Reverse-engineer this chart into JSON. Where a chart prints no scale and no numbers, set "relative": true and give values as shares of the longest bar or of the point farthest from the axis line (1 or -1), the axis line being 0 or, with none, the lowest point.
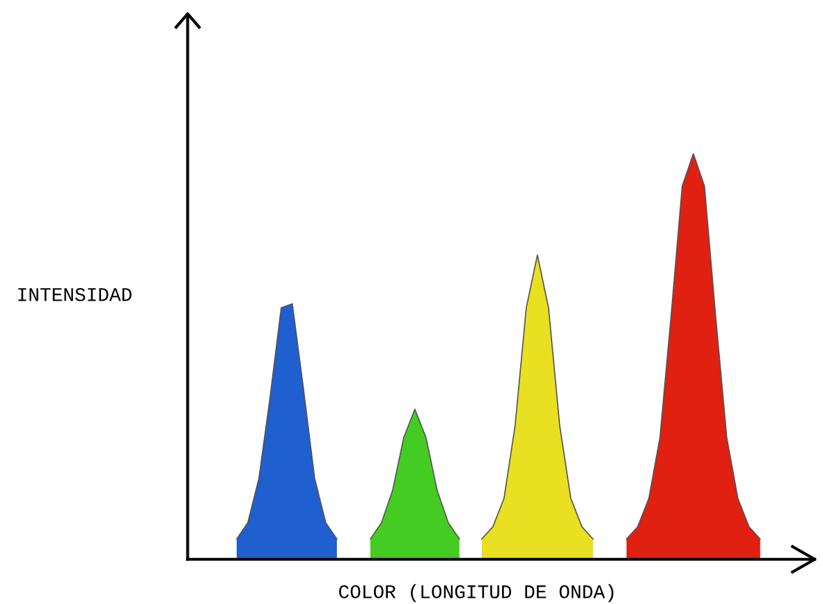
{
  "chart_data": {
    "type": "area",
    "relative": true,
    "xlabel": "COLOR (LONGITUD DE ONDA)",
    "ylabel": "INTENSIDAD",
    "grid": false,
    "legend": false,
    "categories": [
      null,
      null,
      null,
      null,
      null,
      null,
      null,
      null,
      null,
      null,
      null,
      null,
      null,
      null,
      null,
      null,
      null,
      null,
      null,
      null,
      null,
      null,
      null,
      null,
      null,
      null,
      null,
      null,
      null,
      null,
      null,
      null,
      null,
      null,
      null,
      null,
      null,
      null,
      null,
      null,
      null,
      null,
      null,
      null,
      null,
      null,
      null,
      null,
      null,
      null,
      null,
      null,
      null,
      null,
      null,
      null
    ],
    "series": [
      {
        "color": "#1f5fd0",
        "values": [
          null,
          null,
          null,
          null,
          0.05,
          0.09,
          0.2,
          0.4,
          0.62,
          0.63,
          0.42,
          0.2,
          0.09,
          0.05,
          null,
          null,
          null,
          null,
          null,
          null,
          null,
          null,
          null,
          null,
          null,
          null,
          null,
          null,
          null,
          null,
          null,
          null,
          null,
          null,
          null,
          null,
          null,
          null,
          null,
          null,
          null,
          null,
          null,
          null,
          null,
          null,
          null,
          null,
          null,
          null,
          null,
          null,
          null,
          null,
          null,
          null
        ]
      },
      {
        "color": "#44cc22",
        "values": [
          null,
          null,
          null,
          null,
          null,
          null,
          null,
          null,
          null,
          null,
          null,
          null,
          null,
          null,
          null,
          null,
          0.05,
          0.09,
          0.17,
          0.3,
          0.37,
          0.3,
          0.17,
          0.09,
          0.05,
          null,
          null,
          null,
          null,
          null,
          null,
          null,
          null,
          null,
          null,
          null,
          null,
          null,
          null,
          null,
          null,
          null,
          null,
          null,
          null,
          null,
          null,
          null,
          null,
          null,
          null,
          null,
          null,
          null,
          null,
          null
        ]
      },
      {
        "color": "#e8e020",
        "values": [
          null,
          null,
          null,
          null,
          null,
          null,
          null,
          null,
          null,
          null,
          null,
          null,
          null,
          null,
          null,
          null,
          null,
          null,
          null,
          null,
          null,
          null,
          null,
          null,
          null,
          null,
          0.05,
          0.08,
          0.15,
          0.33,
          0.62,
          0.75,
          0.62,
          0.33,
          0.15,
          0.08,
          0.05,
          null,
          null,
          null,
          null,
          null,
          null,
          null,
          null,
          null,
          null,
          null,
          null,
          null,
          null,
          null,
          null,
          null,
          null,
          null
        ]
      },
      {
        "color": "#e02010",
        "values": [
          null,
          null,
          null,
          null,
          null,
          null,
          null,
          null,
          null,
          null,
          null,
          null,
          null,
          null,
          null,
          null,
          null,
          null,
          null,
          null,
          null,
          null,
          null,
          null,
          null,
          null,
          null,
          null,
          null,
          null,
          null,
          null,
          null,
          null,
          null,
          null,
          null,
          null,
          null,
          0.05,
          0.08,
          0.15,
          0.3,
          0.6,
          0.92,
          1.0,
          0.92,
          0.6,
          0.3,
          0.15,
          0.08,
          0.05,
          null,
          null,
          null,
          null
        ]
      }
    ]
  }
}
